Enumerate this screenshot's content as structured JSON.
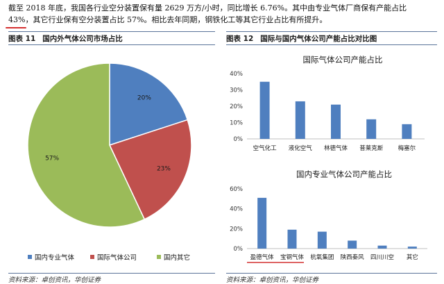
{
  "paragraph": {
    "line1": "截至 2018 年底，我国各行业空分装置保有量 2629 万方/小时，同比增长 6.76%。其中由专业气体厂商保有产能占比",
    "line2": "43%，其它行业保有空分装置占比 57%。相比去年同期，钢铁化工等其它行业占比有所提升。"
  },
  "figure11": {
    "label": "图表 11",
    "title": "国内外气体公司市场占比",
    "source": "资料来源：卓创资讯，华创证券",
    "chart_data": {
      "type": "pie",
      "title": "",
      "slices": [
        {
          "name": "国内专业气体",
          "value": 20,
          "label": "20%",
          "color": "#4f7fbf"
        },
        {
          "name": "国际气体公司",
          "value": 23,
          "label": "23%",
          "color": "#c0504d"
        },
        {
          "name": "国内其它",
          "value": 57,
          "label": "57%",
          "color": "#9bbb59"
        }
      ],
      "legend_position": "bottom"
    }
  },
  "figure12": {
    "label": "图表 12",
    "title": "国际与国内气体公司产能占比对比图",
    "source": "资料来源：卓创资讯，华创证券",
    "chart_data": [
      {
        "type": "bar",
        "title": "国际气体公司产能占比",
        "categories": [
          "空气化工",
          "液化空气",
          "林德气体",
          "普莱克斯",
          "梅塞尔"
        ],
        "values": [
          35,
          23,
          21,
          12,
          9
        ],
        "yticks": [
          "0%",
          "10%",
          "20%",
          "30%",
          "40%"
        ],
        "ylim": [
          0,
          40
        ],
        "color": "#4f7fbf",
        "grid": false
      },
      {
        "type": "bar",
        "title": "国内专业气体公司产能占比",
        "categories": [
          "盈德气体",
          "宝钢气体",
          "杭氧集团",
          "陕西秦风",
          "四川川空",
          "其它"
        ],
        "values": [
          51,
          19,
          17,
          8,
          3,
          2
        ],
        "yticks": [
          "0%",
          "20%",
          "40%",
          "60%"
        ],
        "ylim": [
          0,
          60
        ],
        "color": "#4f7fbf",
        "grid": false
      }
    ]
  }
}
